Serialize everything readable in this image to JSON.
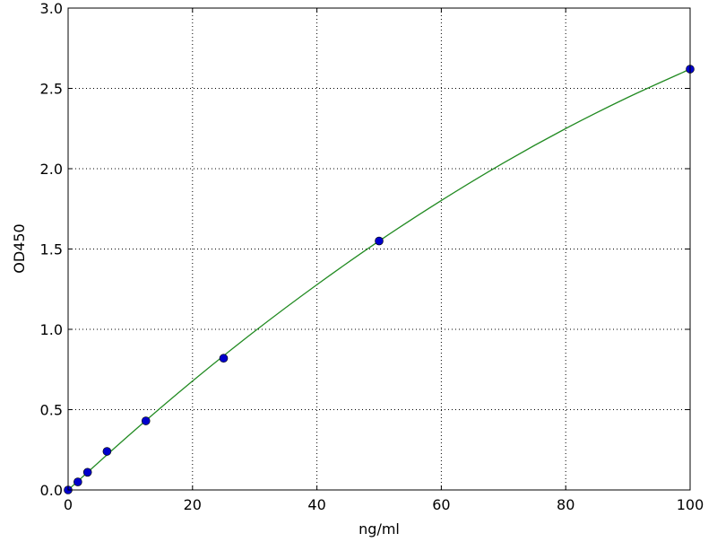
{
  "chart_data": {
    "type": "scatter",
    "title": "",
    "xlabel": "ng/ml",
    "ylabel": "OD450",
    "xlim": [
      0,
      100
    ],
    "ylim": [
      0,
      3.0
    ],
    "xticks": [
      "0",
      "20",
      "40",
      "60",
      "80",
      "100"
    ],
    "yticks": [
      "0.0",
      "0.5",
      "1.0",
      "1.5",
      "2.0",
      "2.5",
      "3.0"
    ],
    "grid": true,
    "series": [
      {
        "kind": "points",
        "color": "#0000cc",
        "x": [
          0,
          1.5625,
          3.125,
          6.25,
          12.5,
          25,
          50,
          100
        ],
        "y": [
          0.0,
          0.05,
          0.11,
          0.24,
          0.43,
          0.82,
          1.55,
          2.62
        ]
      },
      {
        "kind": "fit-line",
        "color": "#228b22",
        "x": [
          0,
          10,
          20,
          30,
          40,
          50,
          60,
          70,
          80,
          90,
          100
        ],
        "y": [
          0,
          0.348,
          0.678,
          0.988,
          1.278,
          1.55,
          1.802,
          2.036,
          2.25,
          2.444,
          2.62
        ]
      }
    ]
  }
}
